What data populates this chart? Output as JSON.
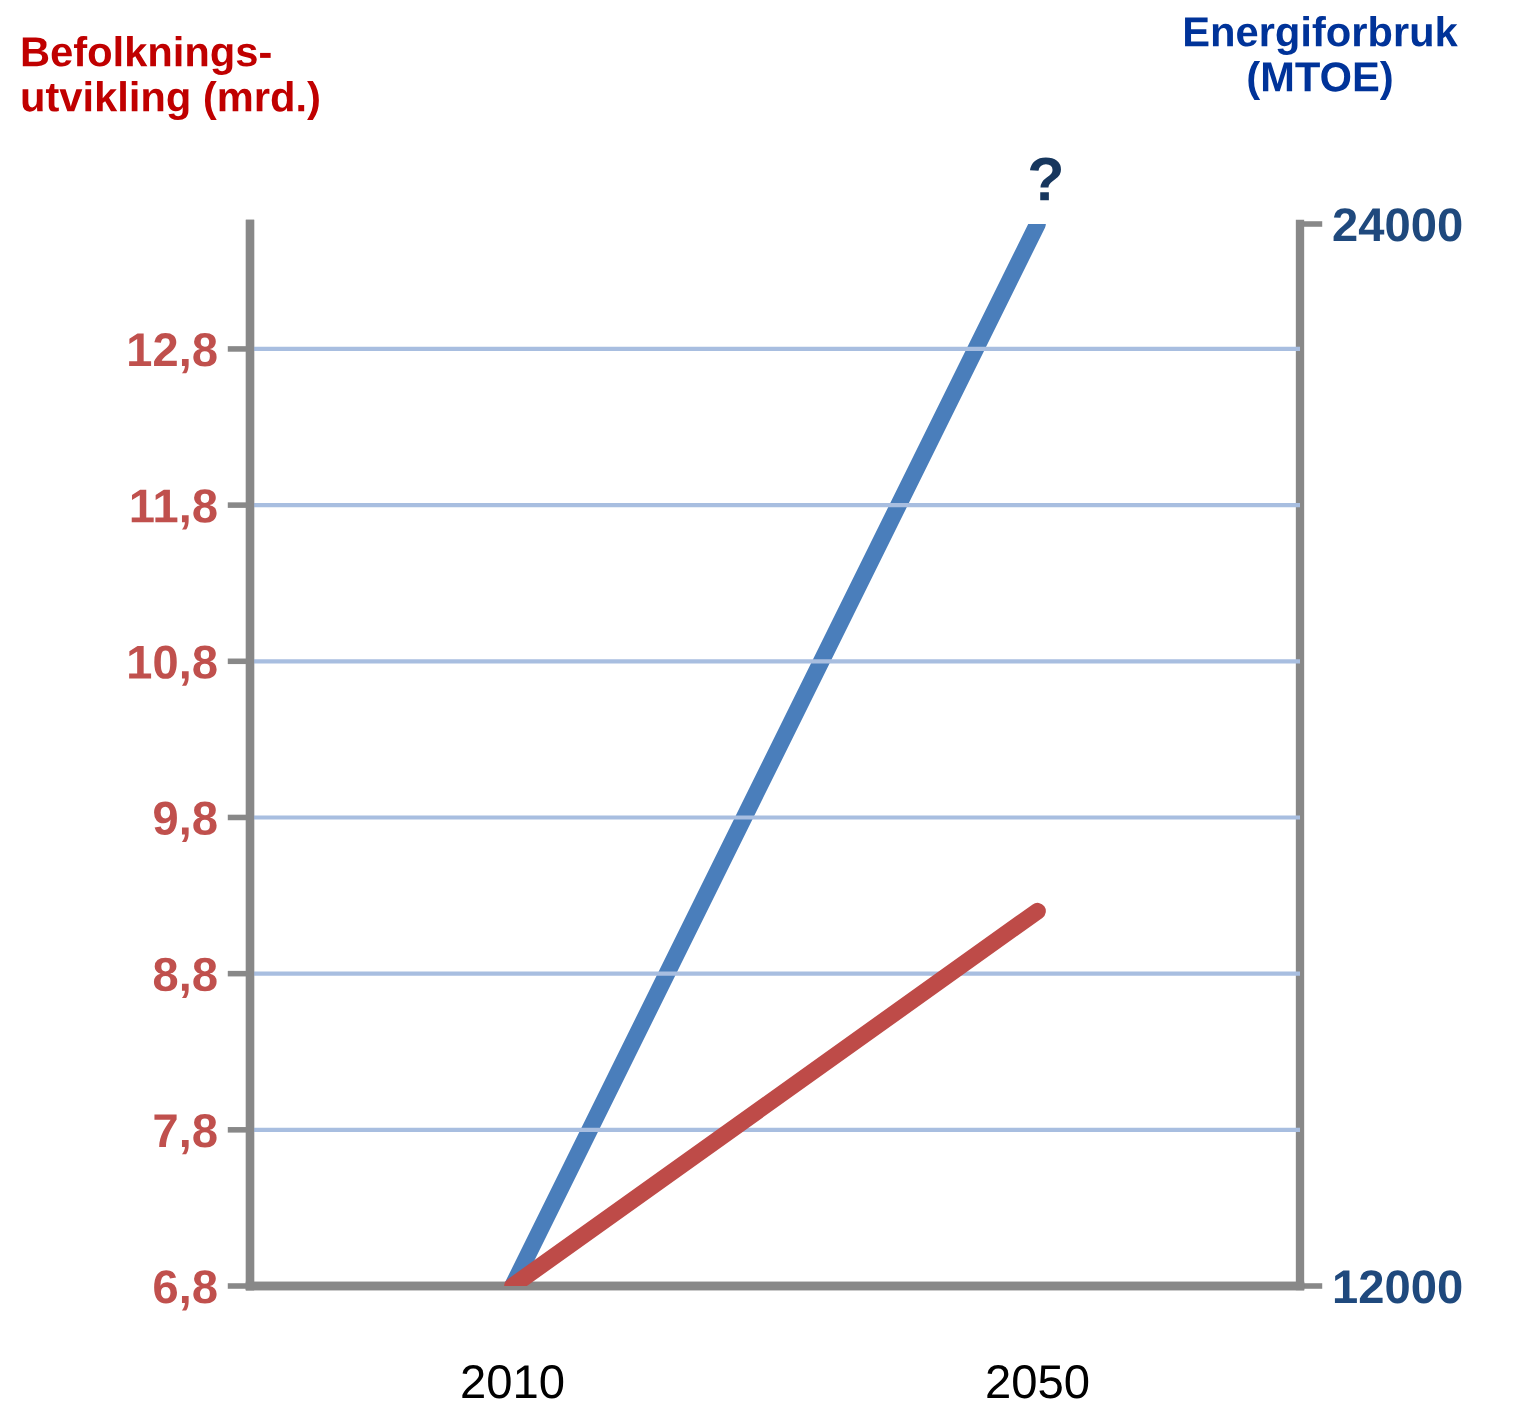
{
  "chart_data": {
    "type": "line",
    "categories": [
      "2010",
      "2050"
    ],
    "ylabel": "Befolknings-\nutvikling (mrd.)",
    "y2label": "Energiforbruk\n(MTOE)",
    "series": [
      {
        "color": "#be4b48",
        "values": [
          6.8,
          9.2
        ]
      },
      {
        "color": "#4a7ebb",
        "values": [
          12000,
          24000
        ],
        "axis": "y2"
      }
    ],
    "ylim": [
      6.8,
      13.6
    ],
    "yticks": [
      {
        "value": 6.8,
        "label": "6,8"
      },
      {
        "value": 7.8,
        "label": "7,8"
      },
      {
        "value": 8.8,
        "label": "8,8"
      },
      {
        "value": 9.8,
        "label": "9,8"
      },
      {
        "value": 10.8,
        "label": "10,8"
      },
      {
        "value": 11.8,
        "label": "11,8"
      },
      {
        "value": 12.8,
        "label": "12,8"
      }
    ],
    "y2lim": [
      12000,
      24000
    ],
    "y2ticks": [
      12000,
      24000
    ],
    "grid": "y",
    "legend": false,
    "marker": "none",
    "line_style": "solid",
    "annotations": [
      "?"
    ]
  }
}
